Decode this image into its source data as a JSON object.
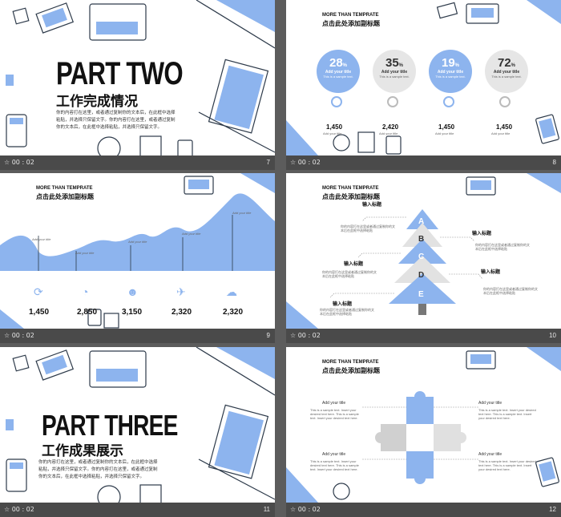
{
  "slides": [
    {
      "id": 7,
      "time": "00 : 02",
      "number": "7",
      "title": "PART TWO",
      "subtitle": "工作完成情况",
      "paragraph": [
        "你的内容打在这里，或者通过复制你的文本后，在此框中选择",
        "粘贴，并选择只保留文字。你的内容打在这里，或者通过复制",
        "你的文本后，在此框中选择粘贴，并选择只保留文字。"
      ]
    },
    {
      "id": 8,
      "time": "00 : 02",
      "number": "8",
      "head": "MORE THAN TEMPRATE",
      "sub": "点击此处添加副标题",
      "circles": [
        {
          "pct": "28",
          "title": "Add your title",
          "value": "1,450",
          "filled": true
        },
        {
          "pct": "35",
          "title": "Add your title",
          "value": "2,420",
          "filled": false
        },
        {
          "pct": "19",
          "title": "Add your title",
          "value": "1,450",
          "filled": true
        },
        {
          "pct": "72",
          "title": "Add your title",
          "value": "1,450",
          "filled": false
        }
      ],
      "circle_text": "This is a sample text. Insert your desired text here. Some sample text. Insert your desired text here."
    },
    {
      "id": 9,
      "time": "00 : 02",
      "number": "9",
      "head": "MORE THAN TEMPRATE",
      "sub": "点击此处添加副标题",
      "wave_labels": [
        "Add your title",
        "Add your title",
        "Add your title",
        "Add your title",
        "Add your title",
        "Add your title"
      ],
      "stats": [
        "1,450",
        "2,850",
        "3,150",
        "2,320",
        "2,320"
      ]
    },
    {
      "id": 10,
      "time": "00 : 02",
      "number": "10",
      "head": "MORE THAN TEMPRATE",
      "sub": "点击此处添加副标题",
      "tree_letters": [
        "A",
        "B",
        "C",
        "D",
        "E"
      ],
      "labels": [
        "输入标题",
        "输入标题",
        "输入标题",
        "输入标题",
        "输入标题"
      ],
      "label_text": "你的内容打在这里或者通过复制你的文本后在此框中选择粘贴"
    },
    {
      "id": 11,
      "time": "00 : 02",
      "number": "11",
      "title": "PART THREE",
      "subtitle": "工作成果展示",
      "paragraph": [
        "你的内容打在这里，或者通过复制你的文本后，在此框中选择",
        "粘贴，并选择只保留文字。你的内容打在这里，或者通过复制",
        "你的文本后，在此框中选择粘贴，并选择只保留文字。"
      ]
    },
    {
      "id": 12,
      "time": "00 : 02",
      "number": "12",
      "head": "MORE THAN TEMPRATE",
      "sub": "点击此处添加副标题",
      "titles": [
        "Add your title",
        "Add your title",
        "Add your title",
        "Add your title"
      ],
      "sample": "This is a sample text. Insert your desired text here. This is a sample text. Insert your desired text here."
    }
  ],
  "colors": {
    "accent": "#8db4ee",
    "dark": "#2d3a4a",
    "bg": "#5c5c5c",
    "footer": "#4a4a4a"
  }
}
